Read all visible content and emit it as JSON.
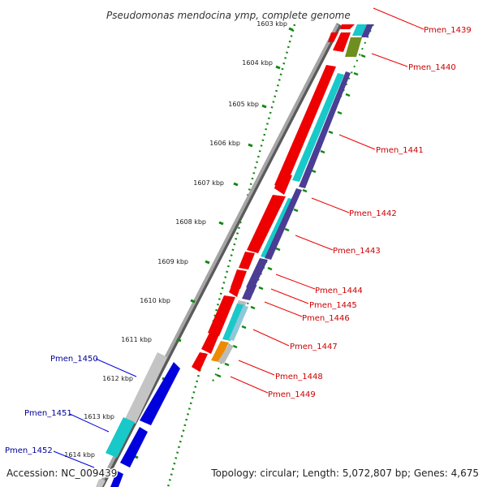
{
  "title": "Pseudomonas mendocina ymp, complete genome",
  "footer": {
    "accession": "Accession: NC_009439",
    "topology": "Topology: circular; Length: 5,072,807 bp; Genes: 4,675"
  },
  "colors": {
    "backbone": "#8c8c8c",
    "tick": "#118811",
    "red": "#ee0000",
    "cyan": "#19c9c9",
    "purple": "#4b3d94",
    "olive": "#6f8f1f",
    "orange": "#ee8a00",
    "gray": "#bbbbbb",
    "blue": "#0000dd",
    "label_red": "#cc0000",
    "label_blue": "#000099"
  },
  "kbp_labels": [
    "1603 kbp",
    "1604 kbp",
    "1605 kbp",
    "1606 kbp",
    "1607 kbp",
    "1608 kbp",
    "1609 kbp",
    "1610 kbp",
    "1611 kbp",
    "1612 kbp",
    "1613 kbp",
    "1614 kbp"
  ],
  "genes_right": [
    "Pmen_1439",
    "Pmen_1440",
    "Pmen_1441",
    "Pmen_1442",
    "Pmen_1443",
    "Pmen_1444",
    "Pmen_1445",
    "Pmen_1446",
    "Pmen_1447",
    "Pmen_1448",
    "Pmen_1449"
  ],
  "genes_left": [
    "Pmen_1450",
    "Pmen_1451",
    "Pmen_1452"
  ]
}
